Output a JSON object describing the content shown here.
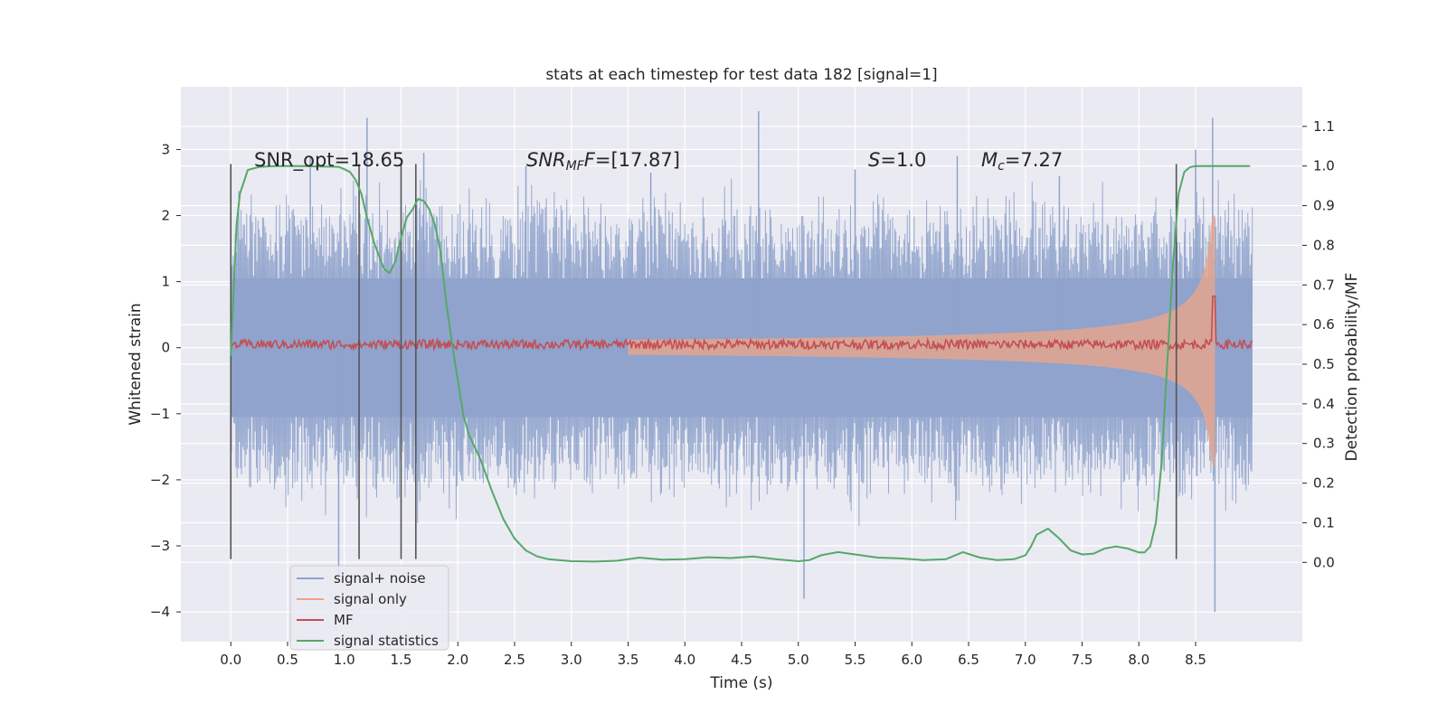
{
  "chart_data": {
    "type": "line",
    "title": "stats at each timestep for test data 182 [signal=1]",
    "xlabel": "Time (s)",
    "ylabel": "Whitened strain",
    "ylabel_right": "Detection probability/MF",
    "xlim": [
      -0.44,
      9.44
    ],
    "ylim": [
      -4.45,
      3.95
    ],
    "ylim_right": [
      -0.2,
      1.2
    ],
    "x_ticks": [
      "0.0",
      "0.5",
      "1.0",
      "1.5",
      "2.0",
      "2.5",
      "3.0",
      "3.5",
      "4.0",
      "4.5",
      "5.0",
      "5.5",
      "6.0",
      "6.5",
      "7.0",
      "7.5",
      "8.0",
      "8.5"
    ],
    "x_tick_values": [
      0,
      0.5,
      1,
      1.5,
      2,
      2.5,
      3,
      3.5,
      4,
      4.5,
      5,
      5.5,
      6,
      6.5,
      7,
      7.5,
      8,
      8.5
    ],
    "y_ticks": [
      "−4",
      "−3",
      "−2",
      "−1",
      "0",
      "1",
      "2",
      "3"
    ],
    "y_tick_values": [
      -4,
      -3,
      -2,
      -1,
      0,
      1,
      2,
      3
    ],
    "y_ticks_right": [
      "0.0",
      "0.1",
      "0.2",
      "0.3",
      "0.4",
      "0.5",
      "0.6",
      "0.7",
      "0.8",
      "0.9",
      "1.0",
      "1.1"
    ],
    "y_tick_values_right": [
      0,
      0.1,
      0.2,
      0.3,
      0.4,
      0.5,
      0.6,
      0.7,
      0.8,
      0.9,
      1.0,
      1.1
    ],
    "annotations": {
      "snr_opt": "SNR_opt=18.65",
      "snr_mf_main": "SNR",
      "snr_mf_sub": "MF",
      "snr_mf_rest": "=[17.87]",
      "s_main": "S",
      "s_rest": "=1.0",
      "mc_main": "M",
      "mc_sub": "c",
      "mc_rest": "=7.27"
    },
    "vertical_lines_x": [
      0.0,
      1.13,
      1.5,
      1.63,
      8.33
    ],
    "vertical_line_range": [
      -3.2,
      2.78
    ],
    "legend": {
      "placement": "lower-left",
      "entries": [
        "signal+ noise",
        "signal only",
        "MF",
        "signal statistics"
      ]
    },
    "series": [
      {
        "name": "signal+ noise",
        "color": "#8fa3cc",
        "x_range": [
          0,
          9.0
        ],
        "envelope_abs": 1.05,
        "spikes": [
          [
            1.2,
            3.48
          ],
          [
            4.65,
            3.58
          ],
          [
            8.65,
            3.48
          ],
          [
            8.67,
            -4.0
          ],
          [
            5.05,
            -3.8
          ],
          [
            0.95,
            -3.5
          ],
          [
            0.7,
            2.9
          ],
          [
            1.7,
            2.95
          ],
          [
            3.7,
            2.65
          ],
          [
            6.4,
            2.9
          ],
          [
            8.5,
            3.0
          ],
          [
            2.6,
            2.75
          ],
          [
            5.5,
            2.7
          ],
          [
            7.3,
            2.6
          ]
        ]
      },
      {
        "name": "signal only",
        "color": "#e8a58a",
        "x_range": [
          3.5,
          8.67
        ],
        "chirp_end_amplitude": 2.0
      },
      {
        "name": "MF",
        "color": "#c44e52",
        "x_range": [
          0,
          9.0
        ],
        "baseline": 0.05,
        "peak": [
          8.66,
          0.78
        ]
      },
      {
        "name": "signal statistics",
        "color": "#55a868",
        "axis": "right",
        "x": [
          0.0,
          0.05,
          0.08,
          0.15,
          0.25,
          0.4,
          0.6,
          0.8,
          0.95,
          1.0,
          1.05,
          1.1,
          1.15,
          1.2,
          1.27,
          1.35,
          1.4,
          1.45,
          1.5,
          1.55,
          1.6,
          1.65,
          1.7,
          1.75,
          1.8,
          1.85,
          1.9,
          1.95,
          2.0,
          2.05,
          2.1,
          2.2,
          2.3,
          2.4,
          2.5,
          2.6,
          2.7,
          2.8,
          3.0,
          3.2,
          3.4,
          3.6,
          3.8,
          4.0,
          4.2,
          4.4,
          4.6,
          4.8,
          5.0,
          5.1,
          5.2,
          5.35,
          5.5,
          5.7,
          5.9,
          6.1,
          6.3,
          6.45,
          6.6,
          6.75,
          6.9,
          7.0,
          7.05,
          7.1,
          7.2,
          7.3,
          7.4,
          7.5,
          7.6,
          7.7,
          7.8,
          7.9,
          8.0,
          8.05,
          8.1,
          8.15,
          8.2,
          8.25,
          8.3,
          8.35,
          8.4,
          8.45,
          8.5,
          8.6,
          8.7,
          8.8,
          8.9,
          8.98
        ],
        "y": [
          0.52,
          0.85,
          0.93,
          0.99,
          0.998,
          1.0,
          1.0,
          0.999,
          0.998,
          0.992,
          0.985,
          0.965,
          0.93,
          0.87,
          0.8,
          0.74,
          0.73,
          0.76,
          0.82,
          0.87,
          0.89,
          0.917,
          0.912,
          0.89,
          0.85,
          0.78,
          0.65,
          0.55,
          0.46,
          0.37,
          0.32,
          0.26,
          0.18,
          0.11,
          0.06,
          0.03,
          0.015,
          0.008,
          0.003,
          0.002,
          0.004,
          0.012,
          0.007,
          0.008,
          0.013,
          0.011,
          0.015,
          0.008,
          0.003,
          0.006,
          0.018,
          0.026,
          0.02,
          0.012,
          0.01,
          0.006,
          0.008,
          0.026,
          0.012,
          0.006,
          0.008,
          0.018,
          0.04,
          0.07,
          0.085,
          0.06,
          0.03,
          0.02,
          0.022,
          0.035,
          0.04,
          0.035,
          0.025,
          0.025,
          0.04,
          0.1,
          0.25,
          0.5,
          0.75,
          0.93,
          0.985,
          0.997,
          1.0,
          1.0,
          1.0,
          1.0,
          1.0,
          1.0
        ]
      }
    ]
  }
}
